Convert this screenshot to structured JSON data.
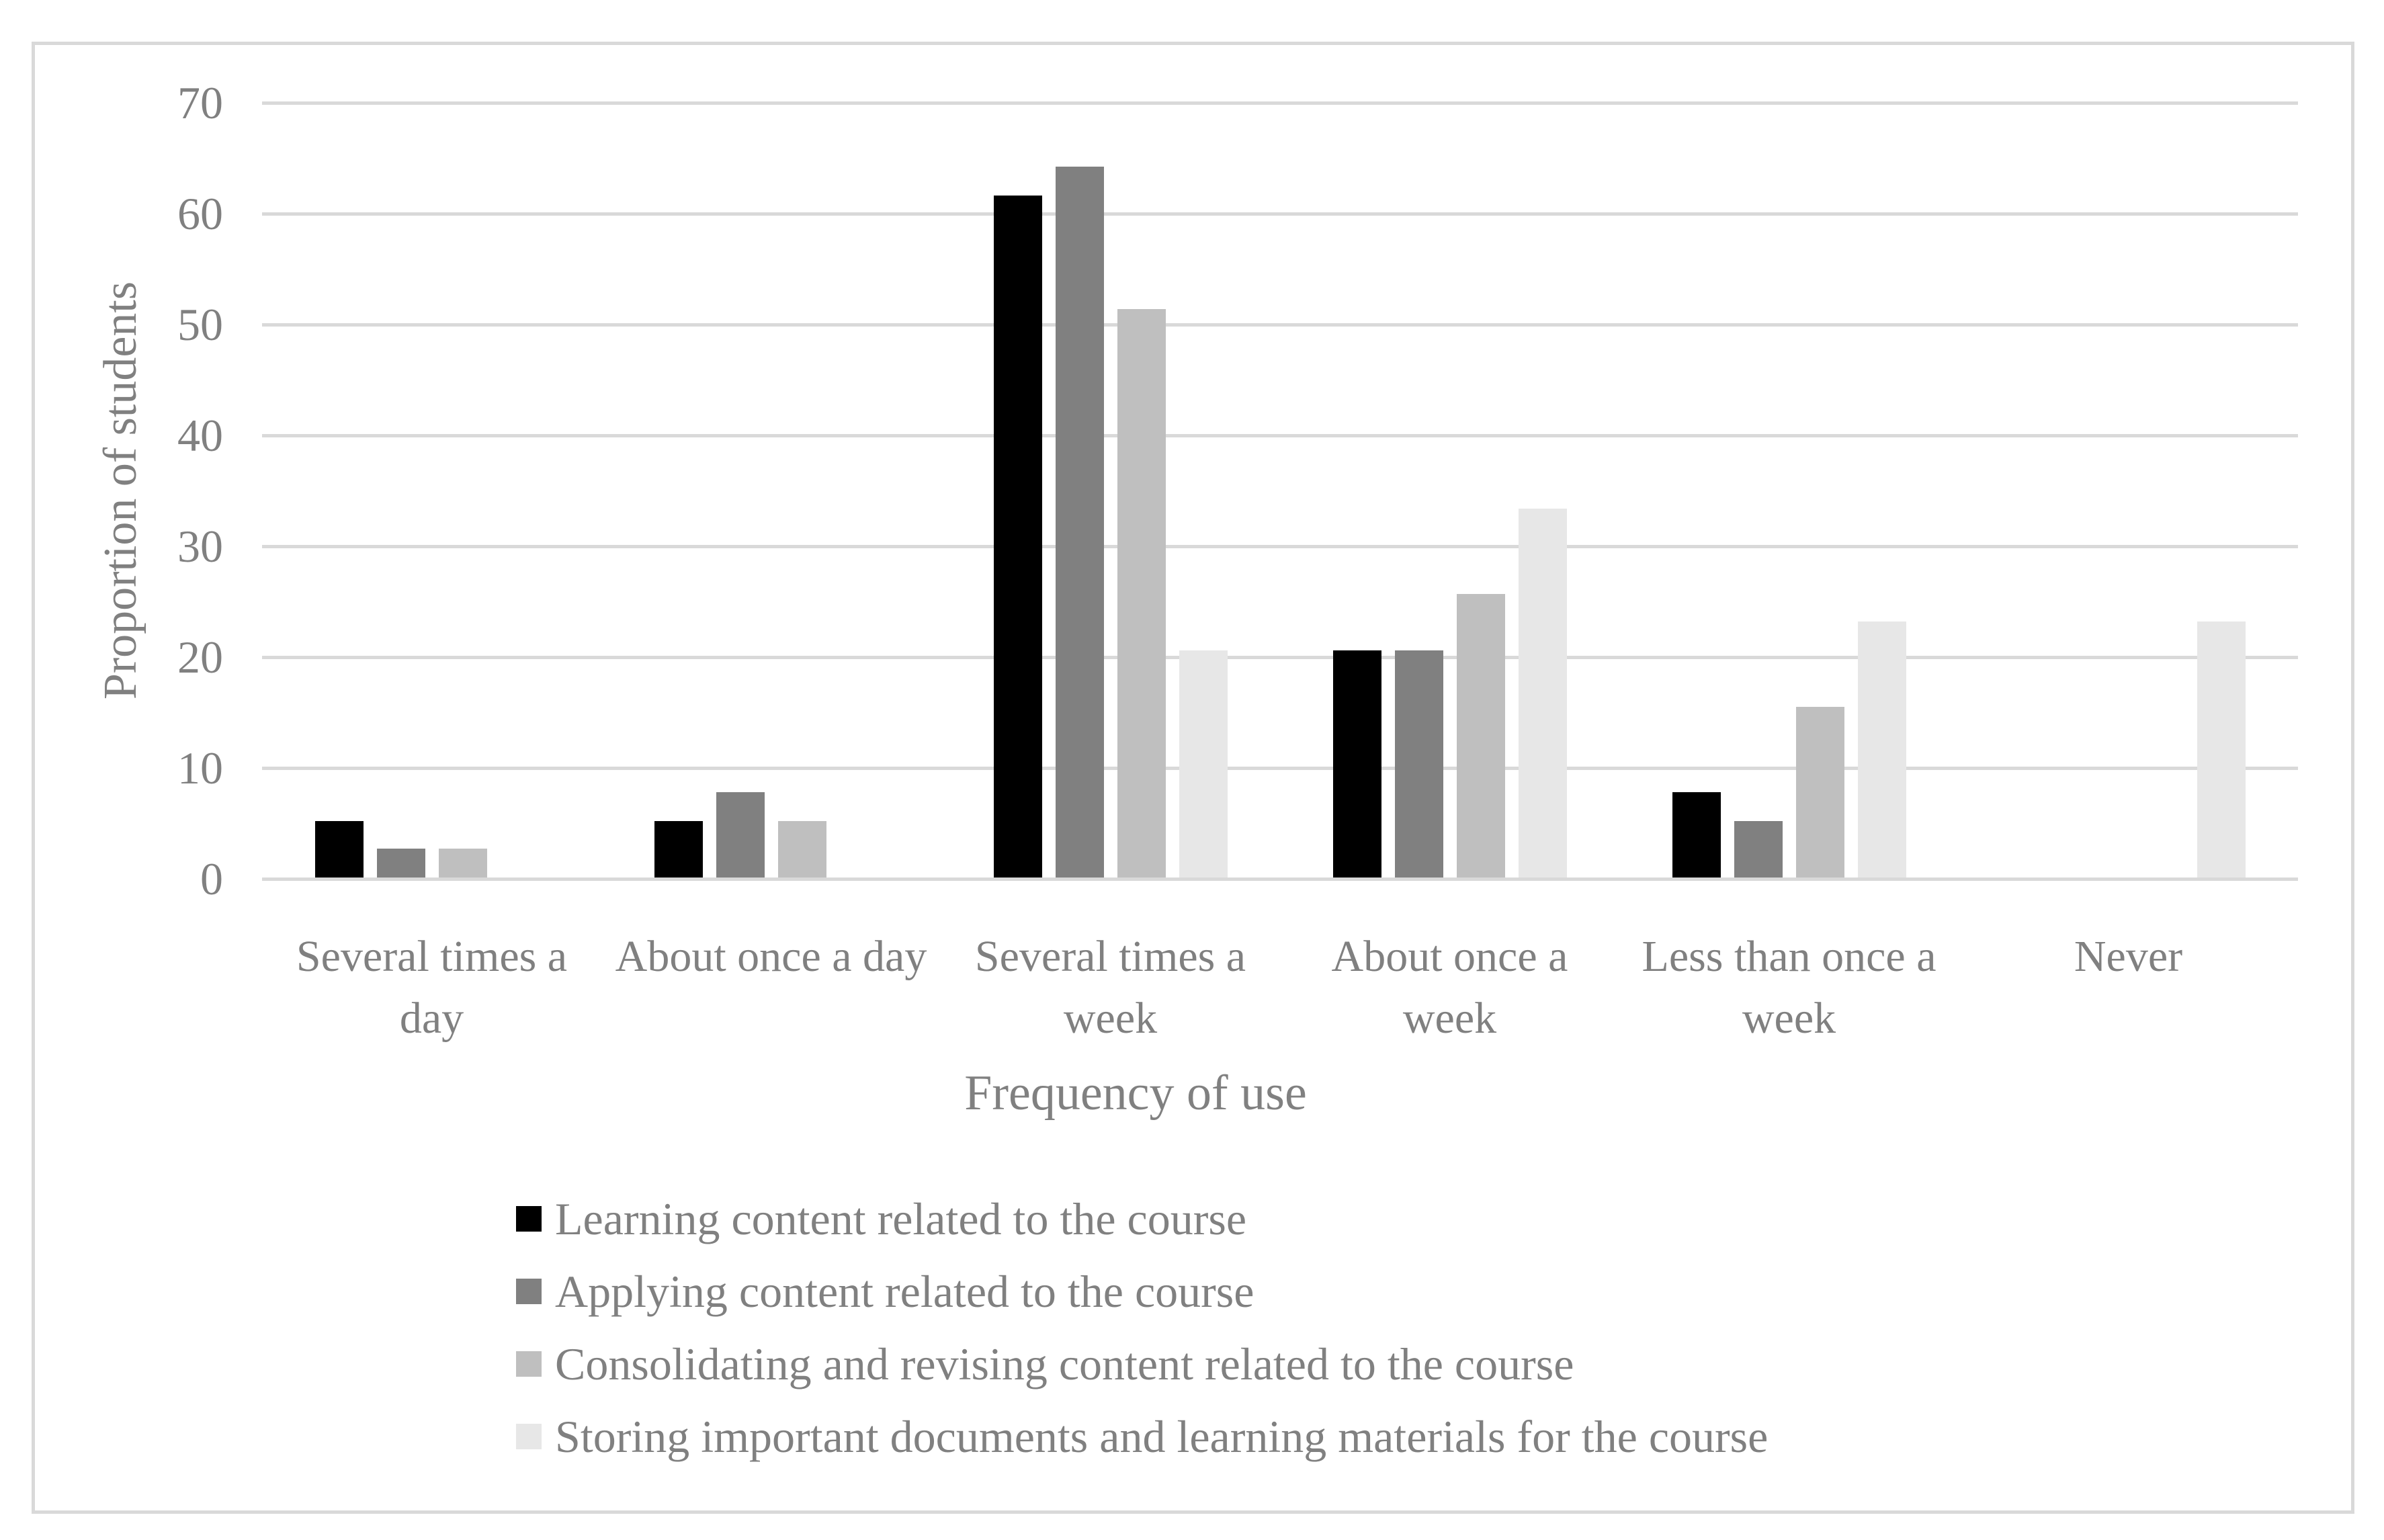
{
  "chart_data": {
    "type": "bar",
    "title": "",
    "xlabel": "Frequency of use",
    "ylabel": "Proportion of students",
    "ylim": [
      0,
      70
    ],
    "yticks": [
      70,
      60,
      50,
      40,
      30,
      20,
      10,
      0
    ],
    "grid": true,
    "legend_position": "bottom-left",
    "categories": [
      "Several times a day",
      "About once a day",
      "Several times a week",
      "About once a week",
      "Less than once a week",
      "Never"
    ],
    "category_label_lines": [
      [
        "Several times a",
        "day"
      ],
      [
        "About once a day"
      ],
      [
        "Several times a",
        "week"
      ],
      [
        "About once a",
        "week"
      ],
      [
        "Less than once a",
        "week"
      ],
      [
        "Never"
      ]
    ],
    "series": [
      {
        "name": "Learning content related to the course",
        "color": "#000000",
        "values": [
          5.1,
          5.1,
          61.5,
          20.5,
          7.7,
          0
        ]
      },
      {
        "name": "Applying content related to the course",
        "color": "#808080",
        "values": [
          2.6,
          7.7,
          64.1,
          20.5,
          5.1,
          0
        ]
      },
      {
        "name": "Consolidating and revising content related to the course",
        "color": "#bfbfbf",
        "values": [
          2.6,
          5.1,
          51.3,
          25.6,
          15.4,
          0
        ]
      },
      {
        "name": "Storing important documents and learning materials for the course",
        "color": "#e7e7e7",
        "values": [
          0,
          0,
          20.5,
          33.3,
          23.1,
          23.1
        ]
      }
    ]
  },
  "colors": {
    "gridline": "#d9d9d9",
    "figure_border": "#d9d9d9",
    "axis_text": "#808080",
    "background": "#ffffff"
  }
}
